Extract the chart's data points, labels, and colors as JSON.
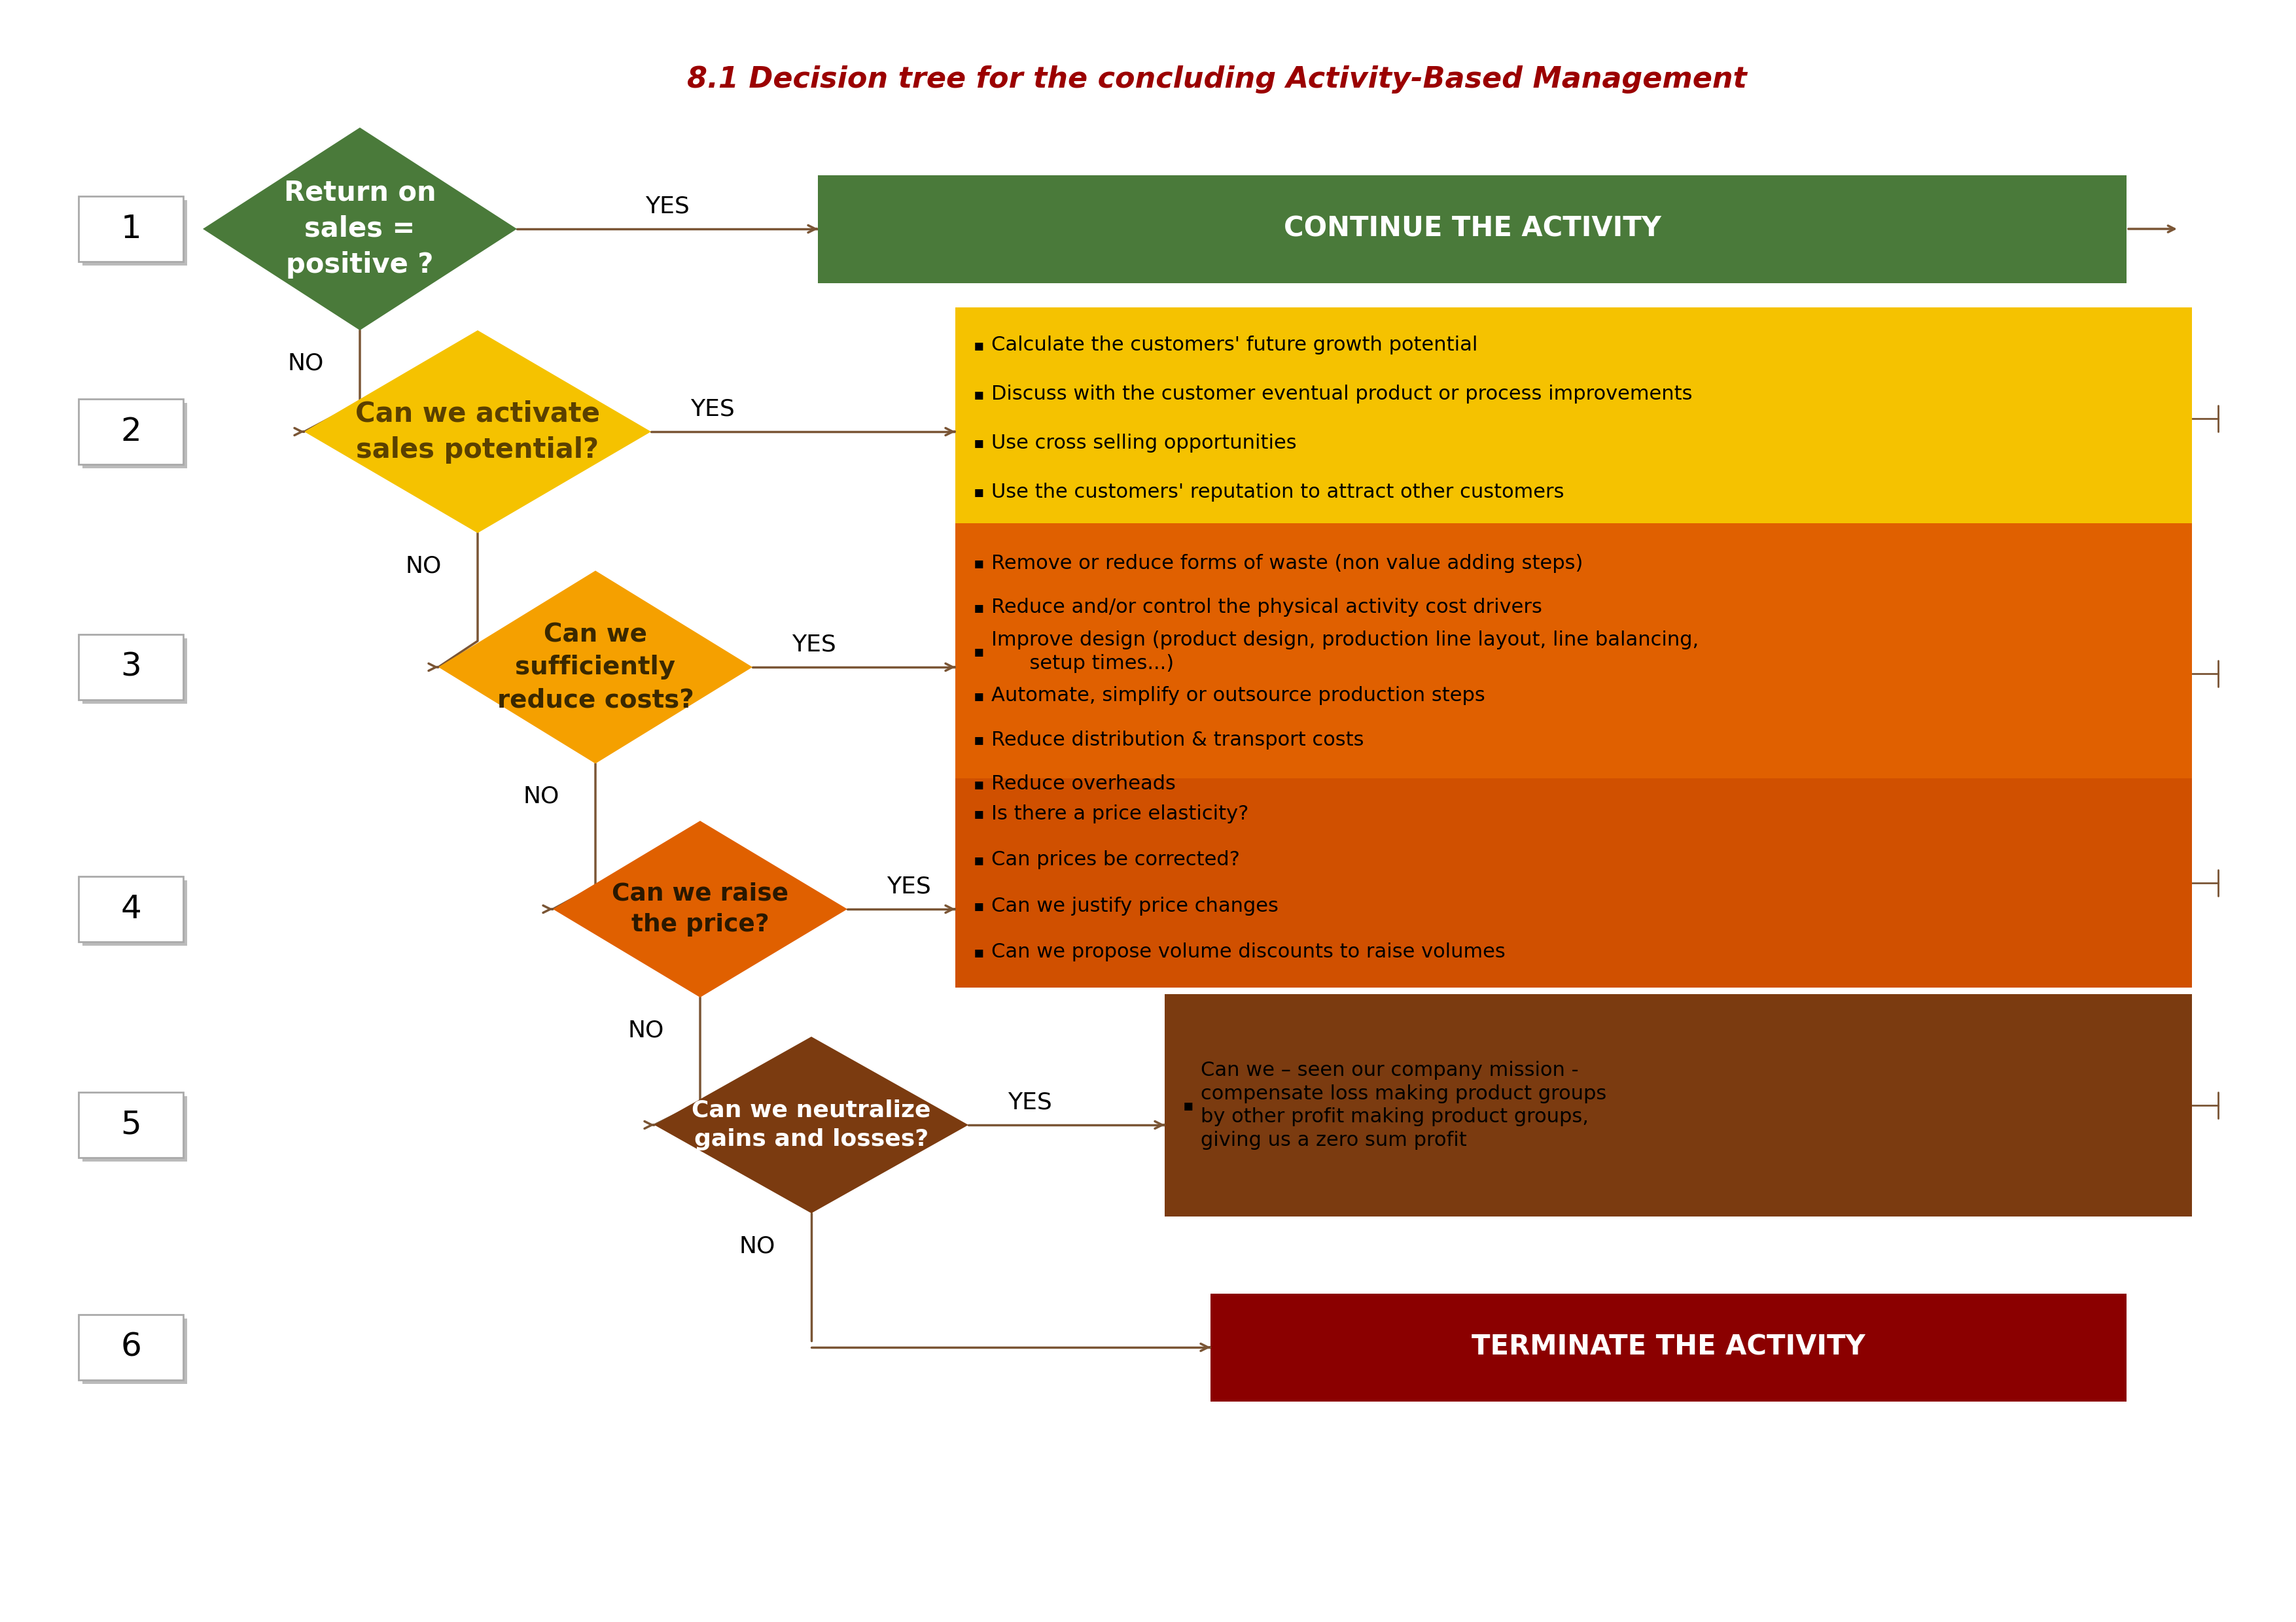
{
  "title": "8.1 Decision tree for the concluding Activity-Based Management",
  "title_color": "#9B0000",
  "title_fontsize": 32,
  "bg_color": "#FFFFFF",
  "colors": {
    "green": "#4A7A3A",
    "yellow": "#F5C200",
    "orange": "#F5A000",
    "dark_orange": "#E06000",
    "brown": "#7B3B10",
    "dark_red": "#8B0000",
    "arrow": "#7A5535",
    "num_box_edge": "#AAAAAA"
  },
  "nodes": [
    {
      "label": "Return on\nsales =\npositive ?",
      "color": "#4A7A3A",
      "text_color": "#FFFFFF"
    },
    {
      "label": "Can we activate\nsales potential?",
      "color": "#F5C200",
      "text_color": "#5A4000"
    },
    {
      "label": "Can we\nsufficiently\nreduce costs?",
      "color": "#F5A000",
      "text_color": "#3A2800"
    },
    {
      "label": "Can we raise\nthe price?",
      "color": "#E06000",
      "text_color": "#2A1800"
    },
    {
      "label": "Can we neutralize\ngains and losses?",
      "color": "#7B3B10",
      "text_color": "#FFFFFF"
    }
  ],
  "action_boxes": [
    {
      "color": "#F5C200",
      "text_color": "#000000",
      "items": [
        "Calculate the customers' future growth potential",
        "Discuss with the customer eventual product or process improvements",
        "Use cross selling opportunities",
        "Use the customers' reputation to attract other customers"
      ]
    },
    {
      "color": "#E06000",
      "text_color": "#000000",
      "items": [
        "Remove or reduce forms of waste (non value adding steps)",
        "Reduce and/or control the physical activity cost drivers",
        "Improve design (product design, production line layout, line balancing,\n      setup times...)",
        "Automate, simplify or outsource production steps",
        "Reduce distribution & transport costs",
        "Reduce overheads"
      ]
    },
    {
      "color": "#D05000",
      "text_color": "#000000",
      "items": [
        "Is there a price elasticity?",
        "Can prices be corrected?",
        "Can we justify price changes",
        "Can we propose volume discounts to raise volumes"
      ]
    },
    {
      "color": "#7B3B10",
      "text_color": "#000000",
      "items": [
        "Can we – seen our company mission -\ncompensate loss making product groups\nby other profit making product groups,\ngiving us a zero sum profit"
      ]
    }
  ]
}
